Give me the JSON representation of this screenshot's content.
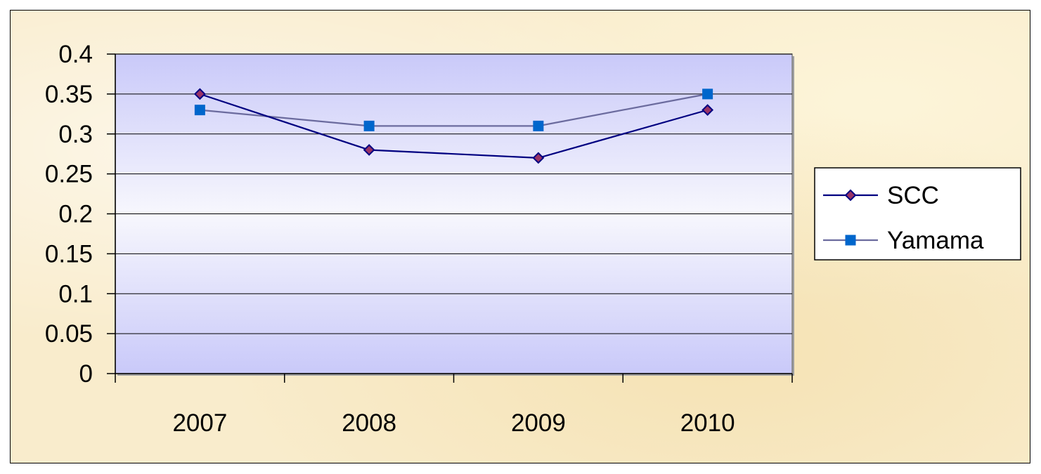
{
  "chart_data": {
    "type": "line",
    "categories": [
      "2007",
      "2008",
      "2009",
      "2010"
    ],
    "series": [
      {
        "name": "SCC",
        "values": [
          0.35,
          0.28,
          0.27,
          0.33
        ],
        "color": "#000080",
        "marker": "diamond",
        "marker_fill": "#993366"
      },
      {
        "name": "Yamama",
        "values": [
          0.33,
          0.31,
          0.31,
          0.35
        ],
        "color": "#6b6b9e",
        "marker": "square",
        "marker_fill": "#0066cc"
      }
    ],
    "y_ticks": [
      "0",
      "0.05",
      "0.1",
      "0.15",
      "0.2",
      "0.25",
      "0.3",
      "0.35",
      "0.4"
    ],
    "ylim": [
      0,
      0.4
    ],
    "grid": true,
    "legend_position": "right",
    "plot_area_color": "#ccccff"
  }
}
